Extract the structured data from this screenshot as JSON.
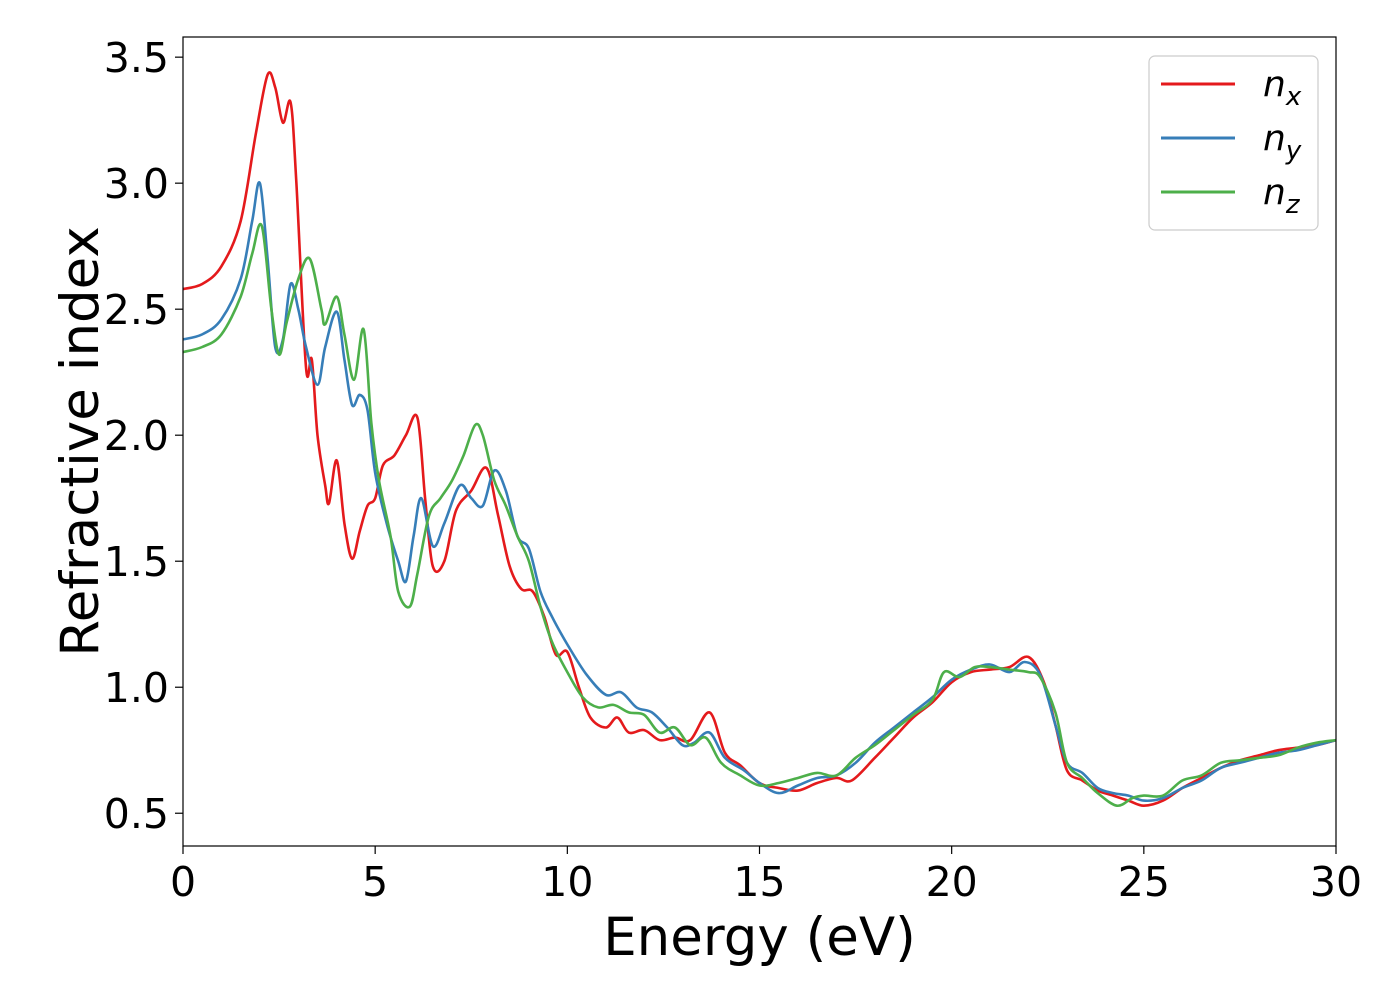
{
  "chart_data": {
    "type": "line",
    "title": "",
    "xlabel": "Energy (eV)",
    "ylabel": "Refractive index",
    "xlim": [
      0,
      30
    ],
    "ylim": [
      0.37,
      3.58
    ],
    "xticks": [
      "0",
      "5",
      "10",
      "15",
      "20",
      "25",
      "30"
    ],
    "yticks": [
      "0.5",
      "1.0",
      "1.5",
      "2.0",
      "2.5",
      "3.0",
      "3.5"
    ],
    "grid": false,
    "legend_position": "top-right",
    "series": [
      {
        "name": "n",
        "subscript": "x",
        "color": "#e41a1c",
        "points": [
          [
            0,
            2.58
          ],
          [
            0.5,
            2.6
          ],
          [
            1.0,
            2.67
          ],
          [
            1.5,
            2.85
          ],
          [
            1.9,
            3.2
          ],
          [
            2.2,
            3.43
          ],
          [
            2.4,
            3.38
          ],
          [
            2.6,
            3.24
          ],
          [
            2.8,
            3.32
          ],
          [
            2.95,
            3.0
          ],
          [
            3.2,
            2.27
          ],
          [
            3.35,
            2.3
          ],
          [
            3.5,
            2.0
          ],
          [
            3.7,
            1.8
          ],
          [
            3.8,
            1.73
          ],
          [
            4.0,
            1.9
          ],
          [
            4.2,
            1.65
          ],
          [
            4.4,
            1.51
          ],
          [
            4.6,
            1.62
          ],
          [
            4.8,
            1.72
          ],
          [
            5.0,
            1.75
          ],
          [
            5.2,
            1.88
          ],
          [
            5.5,
            1.92
          ],
          [
            5.8,
            2.0
          ],
          [
            6.1,
            2.07
          ],
          [
            6.3,
            1.75
          ],
          [
            6.5,
            1.48
          ],
          [
            6.8,
            1.5
          ],
          [
            7.1,
            1.7
          ],
          [
            7.5,
            1.78
          ],
          [
            7.9,
            1.87
          ],
          [
            8.2,
            1.68
          ],
          [
            8.5,
            1.48
          ],
          [
            8.8,
            1.39
          ],
          [
            9.1,
            1.38
          ],
          [
            9.4,
            1.28
          ],
          [
            9.7,
            1.13
          ],
          [
            10.0,
            1.14
          ],
          [
            10.3,
            1.0
          ],
          [
            10.6,
            0.88
          ],
          [
            11.0,
            0.84
          ],
          [
            11.3,
            0.88
          ],
          [
            11.6,
            0.82
          ],
          [
            12.0,
            0.83
          ],
          [
            12.4,
            0.79
          ],
          [
            12.8,
            0.8
          ],
          [
            13.2,
            0.79
          ],
          [
            13.7,
            0.9
          ],
          [
            14.1,
            0.74
          ],
          [
            14.5,
            0.69
          ],
          [
            15.0,
            0.62
          ],
          [
            15.5,
            0.6
          ],
          [
            16.0,
            0.59
          ],
          [
            16.5,
            0.62
          ],
          [
            17.0,
            0.64
          ],
          [
            17.4,
            0.63
          ],
          [
            18.0,
            0.72
          ],
          [
            18.5,
            0.8
          ],
          [
            19.0,
            0.88
          ],
          [
            19.5,
            0.94
          ],
          [
            20.0,
            1.02
          ],
          [
            20.5,
            1.06
          ],
          [
            21.0,
            1.07
          ],
          [
            21.5,
            1.08
          ],
          [
            22.0,
            1.12
          ],
          [
            22.4,
            1.02
          ],
          [
            22.7,
            0.85
          ],
          [
            23.0,
            0.67
          ],
          [
            23.4,
            0.63
          ],
          [
            23.8,
            0.59
          ],
          [
            24.2,
            0.57
          ],
          [
            24.6,
            0.55
          ],
          [
            25.0,
            0.53
          ],
          [
            25.5,
            0.55
          ],
          [
            26.0,
            0.6
          ],
          [
            26.5,
            0.64
          ],
          [
            27.0,
            0.68
          ],
          [
            27.5,
            0.71
          ],
          [
            28.0,
            0.73
          ],
          [
            28.5,
            0.75
          ],
          [
            29.0,
            0.76
          ],
          [
            29.5,
            0.77
          ],
          [
            30.0,
            0.79
          ]
        ]
      },
      {
        "name": "n",
        "subscript": "y",
        "color": "#377eb8",
        "points": [
          [
            0,
            2.38
          ],
          [
            0.5,
            2.4
          ],
          [
            1.0,
            2.46
          ],
          [
            1.5,
            2.62
          ],
          [
            1.8,
            2.85
          ],
          [
            2.0,
            3.0
          ],
          [
            2.2,
            2.7
          ],
          [
            2.4,
            2.35
          ],
          [
            2.6,
            2.38
          ],
          [
            2.8,
            2.6
          ],
          [
            3.0,
            2.5
          ],
          [
            3.2,
            2.35
          ],
          [
            3.5,
            2.2
          ],
          [
            3.7,
            2.35
          ],
          [
            4.0,
            2.49
          ],
          [
            4.2,
            2.3
          ],
          [
            4.4,
            2.12
          ],
          [
            4.6,
            2.16
          ],
          [
            4.8,
            2.1
          ],
          [
            5.0,
            1.85
          ],
          [
            5.3,
            1.65
          ],
          [
            5.6,
            1.5
          ],
          [
            5.8,
            1.42
          ],
          [
            6.0,
            1.6
          ],
          [
            6.2,
            1.75
          ],
          [
            6.5,
            1.56
          ],
          [
            6.8,
            1.65
          ],
          [
            7.2,
            1.8
          ],
          [
            7.5,
            1.75
          ],
          [
            7.8,
            1.72
          ],
          [
            8.1,
            1.86
          ],
          [
            8.4,
            1.78
          ],
          [
            8.7,
            1.6
          ],
          [
            9.0,
            1.55
          ],
          [
            9.3,
            1.38
          ],
          [
            9.6,
            1.28
          ],
          [
            10.0,
            1.17
          ],
          [
            10.5,
            1.05
          ],
          [
            11.0,
            0.97
          ],
          [
            11.4,
            0.98
          ],
          [
            11.8,
            0.92
          ],
          [
            12.2,
            0.9
          ],
          [
            12.6,
            0.84
          ],
          [
            13.0,
            0.77
          ],
          [
            13.3,
            0.78
          ],
          [
            13.7,
            0.82
          ],
          [
            14.1,
            0.72
          ],
          [
            14.6,
            0.67
          ],
          [
            15.0,
            0.62
          ],
          [
            15.5,
            0.58
          ],
          [
            16.0,
            0.61
          ],
          [
            16.5,
            0.64
          ],
          [
            17.0,
            0.65
          ],
          [
            17.5,
            0.7
          ],
          [
            18.0,
            0.78
          ],
          [
            18.5,
            0.84
          ],
          [
            19.0,
            0.9
          ],
          [
            19.5,
            0.96
          ],
          [
            20.0,
            1.03
          ],
          [
            20.5,
            1.07
          ],
          [
            21.0,
            1.09
          ],
          [
            21.5,
            1.06
          ],
          [
            21.9,
            1.1
          ],
          [
            22.3,
            1.05
          ],
          [
            22.7,
            0.85
          ],
          [
            23.0,
            0.7
          ],
          [
            23.4,
            0.66
          ],
          [
            23.8,
            0.6
          ],
          [
            24.2,
            0.58
          ],
          [
            24.6,
            0.57
          ],
          [
            25.0,
            0.55
          ],
          [
            25.5,
            0.56
          ],
          [
            26.0,
            0.6
          ],
          [
            26.5,
            0.63
          ],
          [
            27.0,
            0.68
          ],
          [
            27.5,
            0.7
          ],
          [
            28.0,
            0.72
          ],
          [
            28.5,
            0.74
          ],
          [
            29.0,
            0.75
          ],
          [
            29.5,
            0.77
          ],
          [
            30.0,
            0.79
          ]
        ]
      },
      {
        "name": "n",
        "subscript": "z",
        "color": "#4daf4a",
        "points": [
          [
            0,
            2.33
          ],
          [
            0.5,
            2.35
          ],
          [
            1.0,
            2.4
          ],
          [
            1.5,
            2.55
          ],
          [
            1.8,
            2.72
          ],
          [
            2.05,
            2.83
          ],
          [
            2.3,
            2.5
          ],
          [
            2.5,
            2.32
          ],
          [
            2.7,
            2.45
          ],
          [
            3.0,
            2.62
          ],
          [
            3.3,
            2.7
          ],
          [
            3.6,
            2.5
          ],
          [
            3.7,
            2.44
          ],
          [
            4.0,
            2.55
          ],
          [
            4.2,
            2.4
          ],
          [
            4.45,
            2.22
          ],
          [
            4.7,
            2.42
          ],
          [
            4.9,
            2.05
          ],
          [
            5.1,
            1.82
          ],
          [
            5.4,
            1.6
          ],
          [
            5.6,
            1.38
          ],
          [
            5.9,
            1.32
          ],
          [
            6.1,
            1.45
          ],
          [
            6.4,
            1.68
          ],
          [
            6.7,
            1.75
          ],
          [
            7.0,
            1.82
          ],
          [
            7.3,
            1.92
          ],
          [
            7.6,
            2.04
          ],
          [
            7.8,
            2.0
          ],
          [
            8.1,
            1.82
          ],
          [
            8.4,
            1.72
          ],
          [
            8.7,
            1.6
          ],
          [
            9.0,
            1.5
          ],
          [
            9.3,
            1.32
          ],
          [
            9.6,
            1.18
          ],
          [
            10.0,
            1.06
          ],
          [
            10.4,
            0.96
          ],
          [
            10.8,
            0.92
          ],
          [
            11.2,
            0.93
          ],
          [
            11.6,
            0.9
          ],
          [
            12.0,
            0.89
          ],
          [
            12.4,
            0.82
          ],
          [
            12.8,
            0.84
          ],
          [
            13.2,
            0.77
          ],
          [
            13.6,
            0.8
          ],
          [
            14.0,
            0.7
          ],
          [
            14.5,
            0.65
          ],
          [
            15.0,
            0.61
          ],
          [
            15.5,
            0.62
          ],
          [
            16.0,
            0.64
          ],
          [
            16.5,
            0.66
          ],
          [
            17.0,
            0.65
          ],
          [
            17.5,
            0.72
          ],
          [
            18.0,
            0.77
          ],
          [
            18.5,
            0.83
          ],
          [
            19.0,
            0.89
          ],
          [
            19.5,
            0.95
          ],
          [
            19.8,
            1.06
          ],
          [
            20.2,
            1.04
          ],
          [
            20.6,
            1.08
          ],
          [
            21.0,
            1.08
          ],
          [
            21.5,
            1.07
          ],
          [
            22.0,
            1.06
          ],
          [
            22.3,
            1.04
          ],
          [
            22.7,
            0.9
          ],
          [
            23.0,
            0.7
          ],
          [
            23.4,
            0.64
          ],
          [
            23.8,
            0.58
          ],
          [
            24.3,
            0.53
          ],
          [
            24.7,
            0.56
          ],
          [
            25.0,
            0.57
          ],
          [
            25.5,
            0.57
          ],
          [
            26.0,
            0.63
          ],
          [
            26.5,
            0.65
          ],
          [
            27.0,
            0.7
          ],
          [
            27.5,
            0.71
          ],
          [
            28.0,
            0.72
          ],
          [
            28.5,
            0.73
          ],
          [
            29.0,
            0.76
          ],
          [
            29.5,
            0.78
          ],
          [
            30.0,
            0.79
          ]
        ]
      }
    ]
  }
}
